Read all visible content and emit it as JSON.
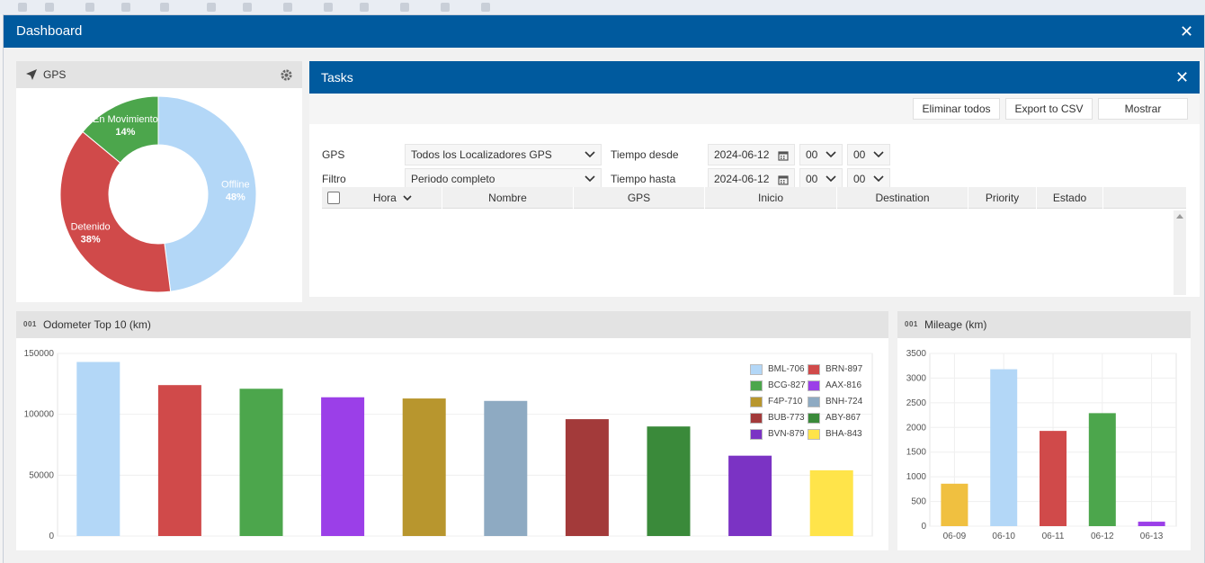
{
  "window": {
    "title": "Dashboard"
  },
  "gps_panel": {
    "title": "GPS",
    "chart_data": {
      "type": "pie",
      "categories": [
        "Offline",
        "Detenido",
        "En Movimiento"
      ],
      "values": [
        48,
        38,
        14
      ],
      "colors": [
        "#b3d7f7",
        "#d04a4a",
        "#4ca64c"
      ],
      "labels": [
        "48%",
        "38%",
        "14%"
      ]
    }
  },
  "tasks": {
    "title": "Tasks",
    "buttons": {
      "delete_all": "Eliminar todos",
      "export_csv": "Export to CSV",
      "show": "Mostrar"
    },
    "form": {
      "gps_label": "GPS",
      "gps_value": "Todos los Localizadores GPS",
      "filter_label": "Filtro",
      "filter_value": "Periodo completo",
      "time_from_label": "Tiempo desde",
      "time_to_label": "Tiempo hasta",
      "date_from": "2024-06-12",
      "date_to": "2024-06-12",
      "hour_from": "00",
      "minute_from": "00",
      "hour_to": "00",
      "minute_to": "00"
    },
    "columns": [
      "Hora",
      "Nombre",
      "GPS",
      "Inicio",
      "Destination",
      "Priority",
      "Estado"
    ]
  },
  "odometer": {
    "title": "Odometer Top 10 (km)",
    "chart_data": {
      "type": "bar",
      "categories": [
        "BML-706",
        "BRN-897",
        "BCG-827",
        "AAX-816",
        "F4P-710",
        "BNH-724",
        "BUB-773",
        "ABY-867",
        "BVN-879",
        "BHA-843"
      ],
      "values": [
        143000,
        124000,
        121000,
        114000,
        113000,
        111000,
        96000,
        90000,
        66000,
        54000
      ],
      "colors": [
        "#b3d7f7",
        "#d04a4a",
        "#4ca64c",
        "#9b3fe8",
        "#b8962e",
        "#8eaac2",
        "#a33a3a",
        "#3a8a3a",
        "#7b33c4",
        "#ffe44a"
      ],
      "ylim": [
        0,
        150000
      ],
      "yticks": [
        "0",
        "50000",
        "100000",
        "150000"
      ],
      "legend_position": "top-right"
    }
  },
  "mileage": {
    "title": "Mileage (km)",
    "chart_data": {
      "type": "bar",
      "categories": [
        "06-09",
        "06-10",
        "06-11",
        "06-12",
        "06-13"
      ],
      "values": [
        860,
        3180,
        1930,
        2290,
        90
      ],
      "colors": [
        "#f0c040",
        "#b3d7f7",
        "#d04a4a",
        "#4ca64c",
        "#9b3fe8"
      ],
      "ylim": [
        0,
        3500
      ],
      "yticks": [
        "0",
        "500",
        "1000",
        "1500",
        "2000",
        "2500",
        "3000",
        "3500"
      ]
    }
  }
}
